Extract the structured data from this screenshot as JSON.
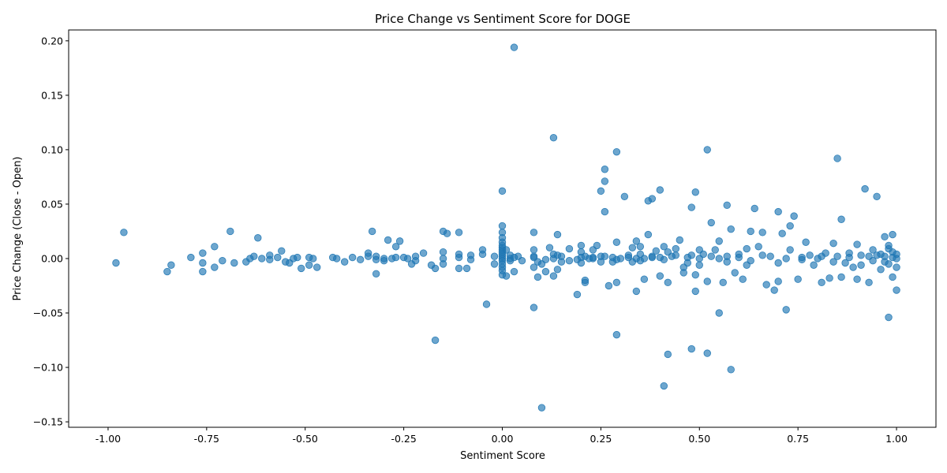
{
  "chart_data": {
    "type": "scatter",
    "title": "Price Change vs Sentiment Score for DOGE",
    "xlabel": "Sentiment Score",
    "ylabel": "Price Change (Close - Open)",
    "xlim": [
      -1.1,
      1.1
    ],
    "ylim": [
      -0.155,
      0.21
    ],
    "xticks": [
      -1.0,
      -0.75,
      -0.5,
      -0.25,
      0.0,
      0.25,
      0.5,
      0.75,
      1.0
    ],
    "xtick_labels": [
      "-1.00",
      "-0.75",
      "-0.50",
      "-0.25",
      "0.00",
      "0.25",
      "0.50",
      "0.75",
      "1.00"
    ],
    "yticks": [
      -0.15,
      -0.1,
      -0.05,
      0.0,
      0.05,
      0.1,
      0.15,
      0.2
    ],
    "ytick_labels": [
      "−0.15",
      "−0.10",
      "−0.05",
      "0.00",
      "0.05",
      "0.10",
      "0.15",
      "0.20"
    ],
    "grid": false,
    "legend": "none",
    "marker_color": "#1f77b4",
    "marker_alpha": 0.65,
    "points": [
      [
        -0.98,
        -0.004
      ],
      [
        -0.96,
        0.024
      ],
      [
        -0.85,
        -0.012
      ],
      [
        -0.84,
        -0.006
      ],
      [
        -0.79,
        0.001
      ],
      [
        -0.76,
        -0.012
      ],
      [
        -0.76,
        -0.004
      ],
      [
        -0.76,
        0.005
      ],
      [
        -0.73,
        -0.008
      ],
      [
        -0.73,
        0.011
      ],
      [
        -0.71,
        -0.002
      ],
      [
        -0.69,
        0.025
      ],
      [
        -0.68,
        -0.004
      ],
      [
        -0.65,
        -0.003
      ],
      [
        -0.64,
        0.0
      ],
      [
        -0.63,
        0.002
      ],
      [
        -0.62,
        0.019
      ],
      [
        -0.61,
        0.0
      ],
      [
        -0.59,
        -0.001
      ],
      [
        -0.59,
        0.003
      ],
      [
        -0.57,
        0.001
      ],
      [
        -0.56,
        0.007
      ],
      [
        -0.55,
        -0.003
      ],
      [
        -0.54,
        -0.004
      ],
      [
        -0.53,
        0.0
      ],
      [
        -0.52,
        0.001
      ],
      [
        -0.51,
        -0.009
      ],
      [
        -0.49,
        -0.006
      ],
      [
        -0.49,
        0.001
      ],
      [
        -0.48,
        0.0
      ],
      [
        -0.47,
        -0.008
      ],
      [
        -0.43,
        0.001
      ],
      [
        -0.42,
        0.0
      ],
      [
        -0.4,
        -0.003
      ],
      [
        -0.38,
        0.001
      ],
      [
        -0.36,
        -0.001
      ],
      [
        -0.34,
        0.002
      ],
      [
        -0.34,
        0.005
      ],
      [
        -0.33,
        0.025
      ],
      [
        -0.32,
        -0.014
      ],
      [
        -0.32,
        -0.001
      ],
      [
        -0.32,
        0.002
      ],
      [
        -0.3,
        -0.002
      ],
      [
        -0.3,
        0.0
      ],
      [
        -0.29,
        0.017
      ],
      [
        -0.28,
        0.0
      ],
      [
        -0.27,
        0.011
      ],
      [
        -0.27,
        0.001
      ],
      [
        -0.26,
        0.016
      ],
      [
        -0.25,
        0.001
      ],
      [
        -0.24,
        0.0
      ],
      [
        -0.23,
        -0.005
      ],
      [
        -0.22,
        0.002
      ],
      [
        -0.22,
        -0.002
      ],
      [
        -0.2,
        0.005
      ],
      [
        -0.18,
        -0.006
      ],
      [
        -0.17,
        -0.009
      ],
      [
        -0.17,
        -0.075
      ],
      [
        -0.15,
        0.025
      ],
      [
        -0.15,
        0.0
      ],
      [
        -0.15,
        -0.005
      ],
      [
        -0.15,
        0.006
      ],
      [
        -0.14,
        0.023
      ],
      [
        -0.11,
        0.024
      ],
      [
        -0.11,
        0.004
      ],
      [
        -0.11,
        0.001
      ],
      [
        -0.11,
        -0.009
      ],
      [
        -0.09,
        -0.009
      ],
      [
        -0.08,
        -0.001
      ],
      [
        -0.08,
        0.003
      ],
      [
        -0.05,
        0.008
      ],
      [
        -0.05,
        0.004
      ],
      [
        -0.04,
        -0.042
      ],
      [
        -0.02,
        -0.005
      ],
      [
        -0.02,
        0.002
      ],
      [
        0.0,
        0.062
      ],
      [
        0.0,
        0.03
      ],
      [
        0.0,
        0.024
      ],
      [
        0.0,
        0.019
      ],
      [
        0.0,
        0.015
      ],
      [
        0.0,
        0.012
      ],
      [
        0.0,
        0.01
      ],
      [
        0.0,
        0.008
      ],
      [
        0.0,
        0.006
      ],
      [
        0.0,
        0.004
      ],
      [
        0.0,
        0.002
      ],
      [
        0.0,
        0.0
      ],
      [
        0.0,
        -0.002
      ],
      [
        0.0,
        -0.005
      ],
      [
        0.0,
        -0.008
      ],
      [
        0.0,
        -0.011
      ],
      [
        0.0,
        -0.015
      ],
      [
        0.01,
        0.008
      ],
      [
        0.01,
        -0.016
      ],
      [
        0.02,
        0.0
      ],
      [
        0.02,
        -0.002
      ],
      [
        0.02,
        0.003
      ],
      [
        0.03,
        0.194
      ],
      [
        0.03,
        -0.012
      ],
      [
        0.04,
        0.002
      ],
      [
        0.08,
        0.024
      ],
      [
        0.08,
        0.008
      ],
      [
        0.08,
        0.002
      ],
      [
        0.08,
        -0.008
      ],
      [
        0.08,
        -0.045
      ],
      [
        0.09,
        -0.003
      ],
      [
        0.09,
        -0.017
      ],
      [
        0.1,
        -0.137
      ],
      [
        0.1,
        -0.005
      ],
      [
        0.11,
        -0.012
      ],
      [
        0.12,
        0.01
      ],
      [
        0.13,
        0.111
      ],
      [
        0.13,
        0.004
      ],
      [
        0.13,
        0.0
      ],
      [
        0.13,
        -0.016
      ],
      [
        0.14,
        0.022
      ],
      [
        0.14,
        -0.01
      ],
      [
        0.15,
        -0.003
      ],
      [
        0.15,
        0.002
      ],
      [
        0.17,
        0.009
      ],
      [
        0.19,
        -0.001
      ],
      [
        0.19,
        -0.033
      ],
      [
        0.2,
        0.012
      ],
      [
        0.2,
        0.006
      ],
      [
        0.2,
        -0.004
      ],
      [
        0.21,
        -0.02
      ],
      [
        0.21,
        -0.022
      ],
      [
        0.21,
        0.002
      ],
      [
        0.22,
        0.0
      ],
      [
        0.23,
        0.008
      ],
      [
        0.23,
        0.001
      ],
      [
        0.24,
        0.012
      ],
      [
        0.25,
        0.062
      ],
      [
        0.25,
        -0.003
      ],
      [
        0.25,
        0.002
      ],
      [
        0.26,
        0.082
      ],
      [
        0.26,
        0.071
      ],
      [
        0.26,
        0.043
      ],
      [
        0.27,
        -0.025
      ],
      [
        0.28,
        0.001
      ],
      [
        0.28,
        -0.003
      ],
      [
        0.29,
        0.098
      ],
      [
        0.29,
        -0.07
      ],
      [
        0.29,
        0.015
      ],
      [
        0.29,
        -0.022
      ],
      [
        0.3,
        0.0
      ],
      [
        0.31,
        0.057
      ],
      [
        0.32,
        0.003
      ],
      [
        0.33,
        0.01
      ],
      [
        0.33,
        -0.003
      ],
      [
        0.34,
        0.0
      ],
      [
        0.34,
        -0.03
      ],
      [
        0.34,
        0.016
      ],
      [
        0.35,
        0.011
      ],
      [
        0.35,
        0.004
      ],
      [
        0.36,
        0.0
      ],
      [
        0.36,
        -0.019
      ],
      [
        0.37,
        0.053
      ],
      [
        0.37,
        0.022
      ],
      [
        0.38,
        0.055
      ],
      [
        0.38,
        0.001
      ],
      [
        0.39,
        0.007
      ],
      [
        0.4,
        0.063
      ],
      [
        0.4,
        -0.016
      ],
      [
        0.4,
        0.001
      ],
      [
        0.41,
        -0.117
      ],
      [
        0.41,
        0.011
      ],
      [
        0.42,
        -0.088
      ],
      [
        0.42,
        -0.022
      ],
      [
        0.42,
        0.006
      ],
      [
        0.43,
        0.002
      ],
      [
        0.44,
        0.009
      ],
      [
        0.45,
        0.017
      ],
      [
        0.46,
        -0.008
      ],
      [
        0.46,
        -0.013
      ],
      [
        0.47,
        0.001
      ],
      [
        0.48,
        0.047
      ],
      [
        0.48,
        0.003
      ],
      [
        0.48,
        -0.083
      ],
      [
        0.49,
        0.061
      ],
      [
        0.49,
        -0.03
      ],
      [
        0.49,
        -0.015
      ],
      [
        0.5,
        0.0
      ],
      [
        0.5,
        -0.006
      ],
      [
        0.51,
        0.004
      ],
      [
        0.52,
        0.1
      ],
      [
        0.52,
        -0.087
      ],
      [
        0.52,
        -0.021
      ],
      [
        0.53,
        0.033
      ],
      [
        0.54,
        0.008
      ],
      [
        0.55,
        -0.05
      ],
      [
        0.55,
        0.016
      ],
      [
        0.55,
        0.0
      ],
      [
        0.56,
        -0.022
      ],
      [
        0.57,
        0.049
      ],
      [
        0.57,
        0.002
      ],
      [
        0.58,
        -0.102
      ],
      [
        0.58,
        0.027
      ],
      [
        0.59,
        -0.013
      ],
      [
        0.6,
        0.004
      ],
      [
        0.61,
        -0.019
      ],
      [
        0.62,
        0.009
      ],
      [
        0.62,
        -0.006
      ],
      [
        0.63,
        0.025
      ],
      [
        0.64,
        0.046
      ],
      [
        0.65,
        0.011
      ],
      [
        0.66,
        0.024
      ],
      [
        0.67,
        -0.024
      ],
      [
        0.68,
        0.002
      ],
      [
        0.69,
        -0.029
      ],
      [
        0.7,
        0.043
      ],
      [
        0.7,
        -0.021
      ],
      [
        0.71,
        0.023
      ],
      [
        0.72,
        -0.047
      ],
      [
        0.72,
        0.0
      ],
      [
        0.73,
        0.03
      ],
      [
        0.74,
        0.039
      ],
      [
        0.75,
        -0.019
      ],
      [
        0.76,
        -0.001
      ],
      [
        0.77,
        0.015
      ],
      [
        0.78,
        0.003
      ],
      [
        0.79,
        -0.006
      ],
      [
        0.81,
        -0.022
      ],
      [
        0.81,
        0.002
      ],
      [
        0.82,
        0.005
      ],
      [
        0.83,
        -0.018
      ],
      [
        0.84,
        0.014
      ],
      [
        0.85,
        0.092
      ],
      [
        0.85,
        0.002
      ],
      [
        0.86,
        0.036
      ],
      [
        0.86,
        -0.017
      ],
      [
        0.87,
        -0.004
      ],
      [
        0.88,
        0.001
      ],
      [
        0.89,
        -0.008
      ],
      [
        0.9,
        -0.019
      ],
      [
        0.9,
        0.013
      ],
      [
        0.91,
        0.003
      ],
      [
        0.92,
        0.064
      ],
      [
        0.93,
        -0.022
      ],
      [
        0.94,
        0.008
      ],
      [
        0.94,
        -0.002
      ],
      [
        0.95,
        0.057
      ],
      [
        0.95,
        0.003
      ],
      [
        0.96,
        -0.01
      ],
      [
        0.97,
        0.02
      ],
      [
        0.97,
        0.002
      ],
      [
        0.98,
        -0.054
      ],
      [
        0.98,
        0.012
      ],
      [
        0.98,
        -0.005
      ],
      [
        0.99,
        0.022
      ],
      [
        0.99,
        0.006
      ],
      [
        0.99,
        -0.017
      ],
      [
        0.99,
        0.001
      ],
      [
        1.0,
        -0.029
      ],
      [
        1.0,
        0.004
      ],
      [
        1.0,
        -0.008
      ],
      [
        1.0,
        0.0
      ],
      [
        0.98,
        0.009
      ],
      [
        0.97,
        -0.003
      ],
      [
        0.96,
        0.004
      ],
      [
        0.93,
        0.002
      ],
      [
        0.91,
        -0.006
      ],
      [
        0.88,
        0.005
      ],
      [
        0.84,
        -0.003
      ],
      [
        0.8,
        0.0
      ],
      [
        0.76,
        0.001
      ],
      [
        0.73,
        0.008
      ],
      [
        0.7,
        -0.004
      ],
      [
        0.66,
        0.003
      ],
      [
        0.63,
        -0.002
      ],
      [
        0.6,
        0.001
      ],
      [
        0.57,
        -0.003
      ],
      [
        0.53,
        0.002
      ],
      [
        0.5,
        0.008
      ],
      [
        0.47,
        -0.004
      ],
      [
        0.44,
        0.003
      ],
      [
        0.41,
        -0.001
      ],
      [
        0.38,
        0.002
      ],
      [
        0.35,
        -0.002
      ],
      [
        0.32,
        0.001
      ],
      [
        0.29,
        -0.001
      ],
      [
        0.26,
        0.002
      ],
      [
        0.23,
        0.0
      ],
      [
        0.2,
        0.001
      ],
      [
        0.17,
        -0.002
      ],
      [
        0.14,
        0.003
      ],
      [
        0.11,
        -0.001
      ],
      [
        0.08,
        0.001
      ],
      [
        0.05,
        -0.002
      ],
      [
        0.03,
        0.001
      ]
    ]
  }
}
